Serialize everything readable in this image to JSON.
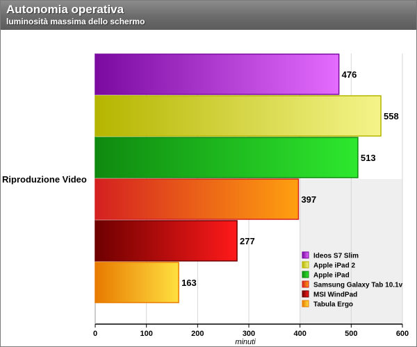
{
  "header": {
    "title": "Autonomia operativa",
    "subtitle": "luminosità massima dello schermo"
  },
  "chart_data": {
    "type": "bar",
    "orientation": "horizontal",
    "categories": [
      "Riproduzione Video"
    ],
    "series": [
      {
        "name": "Ideos S7 Slim",
        "values": [
          476
        ],
        "color_dark": "#7a0aa0",
        "color_light": "#e46cff"
      },
      {
        "name": "Apple iPad 2",
        "values": [
          558
        ],
        "color_dark": "#b5b500",
        "color_light": "#f4f48a"
      },
      {
        "name": "Apple iPad",
        "values": [
          513
        ],
        "color_dark": "#0f8a0f",
        "color_light": "#2ee82e"
      },
      {
        "name": "Samsung Galaxy Tab 10.1v",
        "values": [
          397
        ],
        "color_dark": "#d42020",
        "color_light": "#ffa010"
      },
      {
        "name": "MSI WindPad",
        "values": [
          277
        ],
        "color_dark": "#6e0000",
        "color_light": "#ff1a1a"
      },
      {
        "name": "Tabula Ergo",
        "values": [
          163
        ],
        "color_dark": "#e87a00",
        "color_light": "#ffe040"
      }
    ],
    "xlabel": "minuti",
    "ylabel": "",
    "xlim": [
      0,
      600
    ],
    "xticks": [
      0,
      100,
      200,
      300,
      400,
      500,
      600
    ],
    "grid": true,
    "legend_position": "bottom-right"
  }
}
